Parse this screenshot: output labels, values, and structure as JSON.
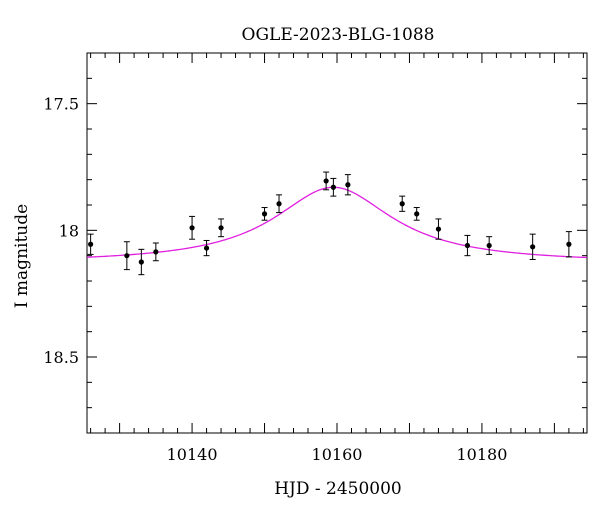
{
  "chart_data": {
    "type": "scatter",
    "title": "OGLE-2023-BLG-1088",
    "xlabel": "HJD - 2450000",
    "ylabel": "I magnitude",
    "xlim": [
      10125.5,
      10194.5
    ],
    "ylim": [
      18.8,
      17.3
    ],
    "y_inverted": true,
    "grid": false,
    "x_ticks": [
      10140,
      10160,
      10180
    ],
    "x_tick_labels": [
      "10140",
      "10160",
      "10180"
    ],
    "y_ticks": [
      17.5,
      18.0,
      18.5
    ],
    "y_tick_labels": [
      "17.5",
      "18",
      "18.5"
    ],
    "points": [
      {
        "x": 10126.0,
        "y": 18.055,
        "err": 0.04
      },
      {
        "x": 10131.0,
        "y": 18.1,
        "err": 0.055
      },
      {
        "x": 10133.0,
        "y": 18.125,
        "err": 0.05
      },
      {
        "x": 10135.0,
        "y": 18.085,
        "err": 0.035
      },
      {
        "x": 10140.0,
        "y": 17.99,
        "err": 0.045
      },
      {
        "x": 10142.0,
        "y": 18.07,
        "err": 0.03
      },
      {
        "x": 10144.0,
        "y": 17.99,
        "err": 0.035
      },
      {
        "x": 10150.0,
        "y": 17.935,
        "err": 0.025
      },
      {
        "x": 10152.0,
        "y": 17.895,
        "err": 0.035
      },
      {
        "x": 10158.5,
        "y": 17.805,
        "err": 0.035
      },
      {
        "x": 10159.5,
        "y": 17.83,
        "err": 0.035
      },
      {
        "x": 10161.5,
        "y": 17.82,
        "err": 0.04
      },
      {
        "x": 10169.0,
        "y": 17.895,
        "err": 0.03
      },
      {
        "x": 10171.0,
        "y": 17.935,
        "err": 0.025
      },
      {
        "x": 10174.0,
        "y": 17.995,
        "err": 0.04
      },
      {
        "x": 10178.0,
        "y": 18.06,
        "err": 0.04
      },
      {
        "x": 10181.0,
        "y": 18.06,
        "err": 0.035
      },
      {
        "x": 10187.0,
        "y": 18.065,
        "err": 0.05
      },
      {
        "x": 10192.0,
        "y": 18.055,
        "err": 0.05
      }
    ],
    "model": {
      "type": "line",
      "color": "#e020e0",
      "baseline_mag": 18.13,
      "peak_mag": 17.83,
      "t0": 10159.5,
      "width": 10.0
    },
    "colors": {
      "points": "#000000",
      "axes": "#000000"
    }
  }
}
